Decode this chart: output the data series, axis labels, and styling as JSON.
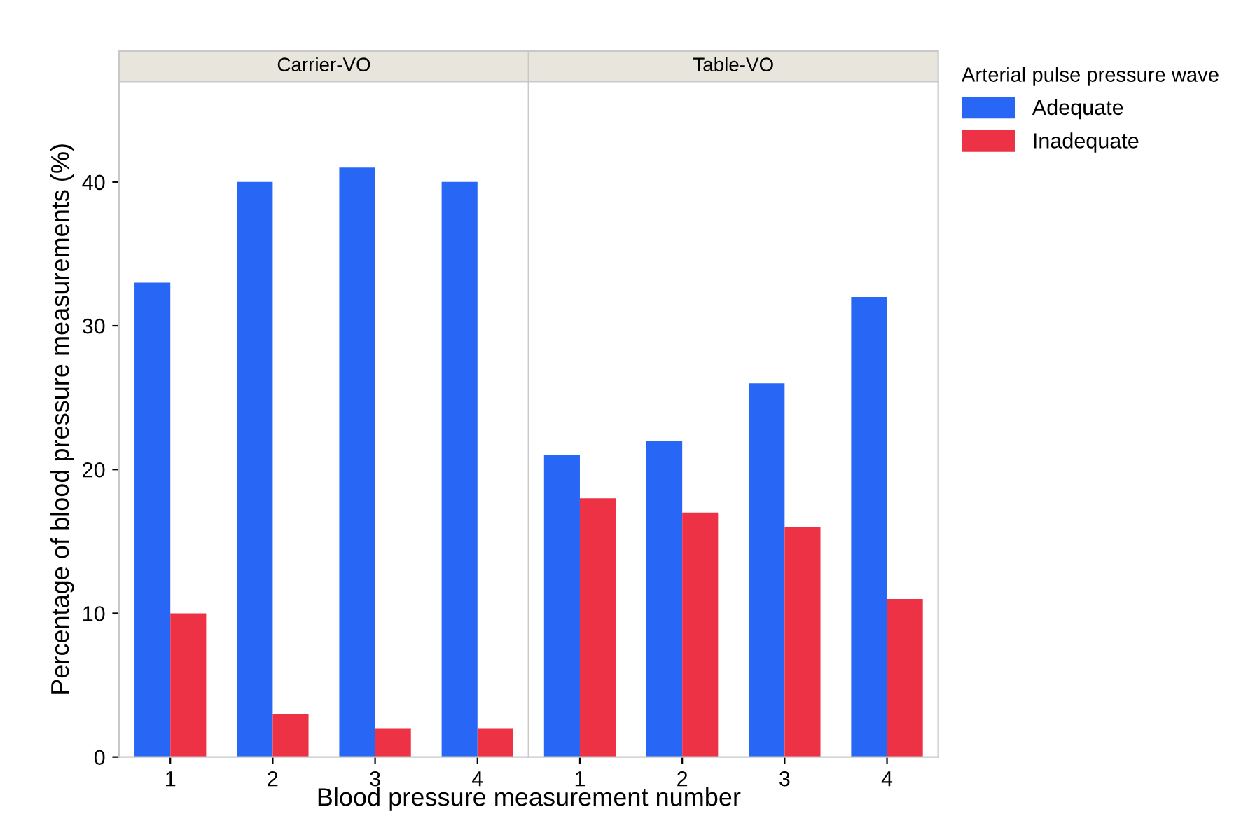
{
  "chart_data": [
    {
      "type": "bar",
      "title": "Carrier-VO",
      "xlabel": "Blood pressure measurement number",
      "ylabel": "Percentage of blood pressure measurements (%)",
      "categories": [
        "1",
        "2",
        "3",
        "4"
      ],
      "series": [
        {
          "color": "#2866f5",
          "values": [
            33,
            40,
            41,
            40
          ]
        },
        {
          "color": "#ee3246",
          "values": [
            10,
            3,
            2,
            2
          ]
        }
      ],
      "ylim": [
        0,
        47
      ],
      "yticks": [
        0,
        10,
        20,
        30,
        40
      ],
      "grid": false,
      "legend": false
    },
    {
      "type": "bar",
      "title": "Table-VO",
      "categories": [
        "1",
        "2",
        "3",
        "4"
      ],
      "series": [
        {
          "name": "Adequate",
          "color": "#2866f5",
          "values": [
            21,
            22,
            26,
            32
          ]
        },
        {
          "name": "Inadequate",
          "color": "#ee3246",
          "values": [
            18,
            17,
            16,
            11
          ]
        }
      ],
      "ylim": [
        0,
        47
      ],
      "yticks": [
        0,
        10,
        20,
        30,
        40
      ],
      "grid": false,
      "legend": "right",
      "legend_title": "Arterial pulse pressure wave",
      "tick_labels": "x"
    }
  ]
}
